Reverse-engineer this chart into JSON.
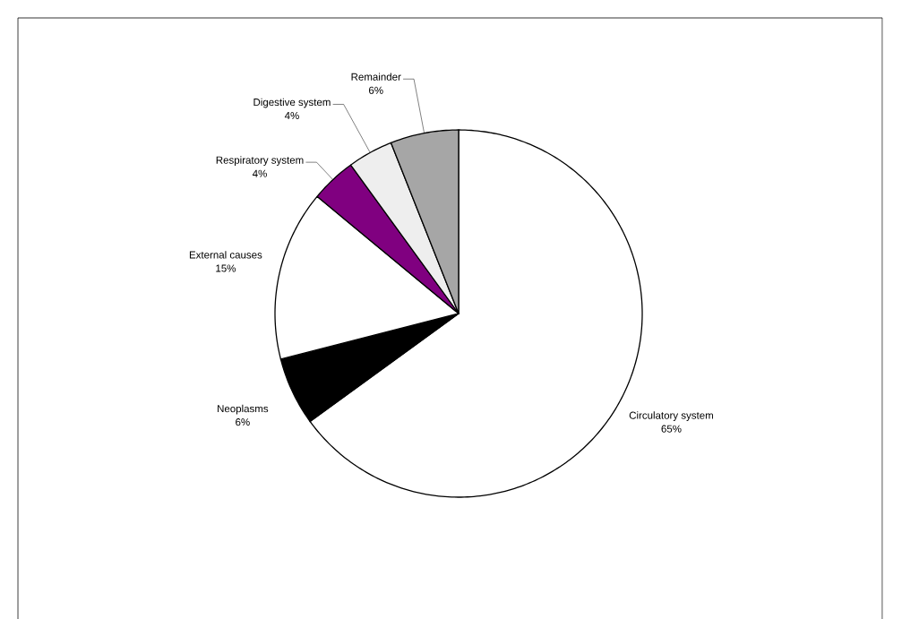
{
  "chart_data": {
    "type": "pie",
    "categories": [
      "Circulatory system",
      "Neoplasms",
      "External causes",
      "Respiratory system",
      "Digestive system",
      "Remainder"
    ],
    "values": [
      65,
      6,
      15,
      4,
      4,
      6
    ],
    "value_labels": [
      "65%",
      "6%",
      "15%",
      "4%",
      "4%",
      "6%"
    ],
    "colors": [
      "#ffffff",
      "#000000",
      "#ffffff",
      "#800080",
      "#eeeeee",
      "#a6a6a6"
    ]
  }
}
